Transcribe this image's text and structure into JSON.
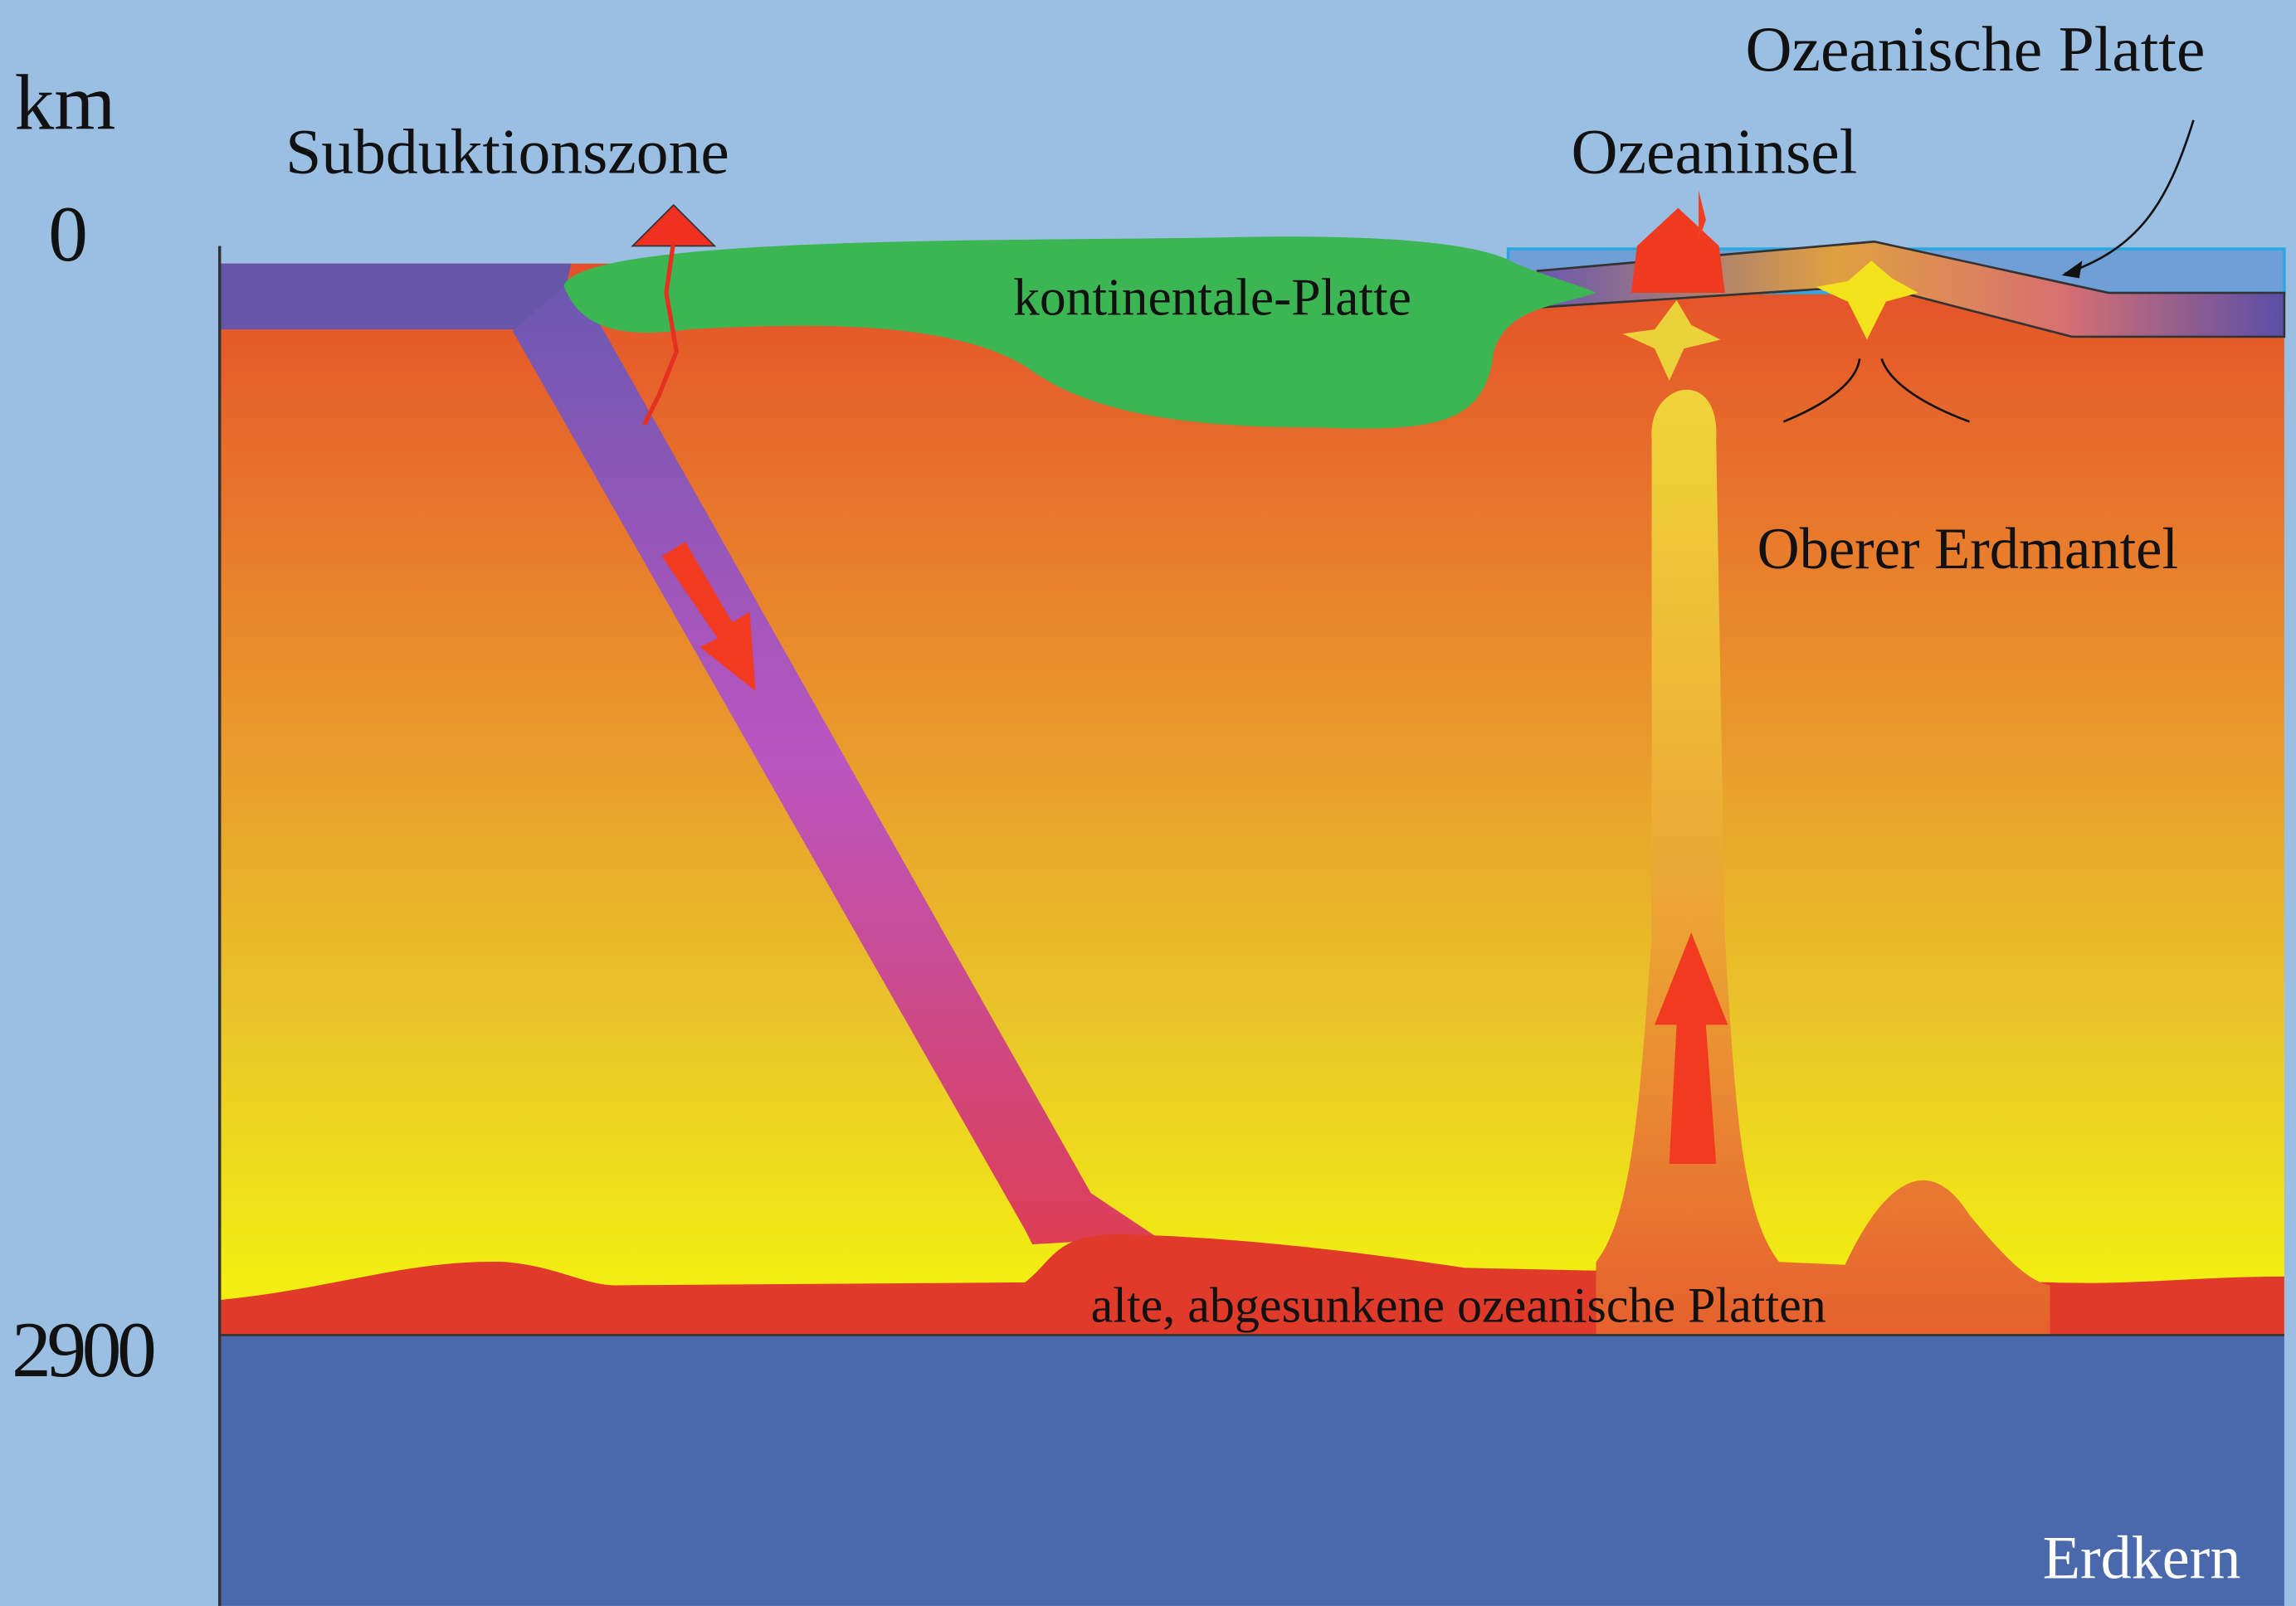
{
  "depth_axis": {
    "unit": "km",
    "ticks": [
      "0",
      "2900"
    ]
  },
  "labels": {
    "subduction_zone": "Subduktionszone",
    "ocean_island": "Ozeaninsel",
    "oceanic_plate": "Ozeanische Platte",
    "continental_plate": "kontinentale-Platte",
    "upper_mantle": "Oberer Erdmantel",
    "old_slabs": "alte, abgesunkene ozeanische Platten",
    "core": "Erdkern"
  }
}
